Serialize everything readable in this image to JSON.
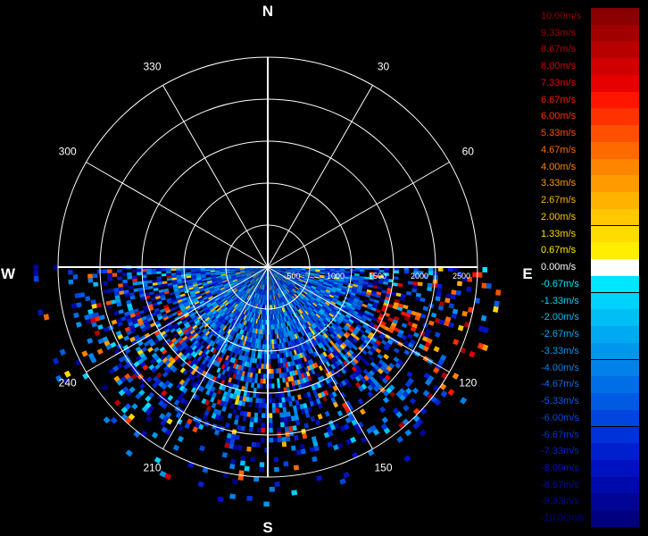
{
  "chart_data": {
    "type": "polar-radar",
    "compass": {
      "north": "N",
      "east": "E",
      "south": "S",
      "west": "W"
    },
    "angle_ticks": [
      {
        "angle": 30,
        "label": "30"
      },
      {
        "angle": 60,
        "label": "60"
      },
      {
        "angle": 120,
        "label": "120"
      },
      {
        "angle": 150,
        "label": "150"
      },
      {
        "angle": 210,
        "label": "210"
      },
      {
        "angle": 240,
        "label": "240"
      },
      {
        "angle": 300,
        "label": "300"
      },
      {
        "angle": 330,
        "label": "330"
      }
    ],
    "range_ticks": [
      "500",
      "1000",
      "1500",
      "2000",
      "2500"
    ],
    "range_max": 2500,
    "sector": {
      "start_deg": 90,
      "end_deg": 270
    },
    "colorbar": [
      {
        "label": "10.00m/s",
        "value": 10.0,
        "color": "#8b0000"
      },
      {
        "label": "9.33m/s",
        "value": 9.33,
        "color": "#a10000"
      },
      {
        "label": "8.67m/s",
        "value": 8.67,
        "color": "#b80000"
      },
      {
        "label": "8.00m/s",
        "value": 8.0,
        "color": "#d00000"
      },
      {
        "label": "7.33m/s",
        "value": 7.33,
        "color": "#e60000"
      },
      {
        "label": "6.67m/s",
        "value": 6.67,
        "color": "#ff1500"
      },
      {
        "label": "6.00m/s",
        "value": 6.0,
        "color": "#ff3200"
      },
      {
        "label": "5.33m/s",
        "value": 5.33,
        "color": "#ff4f00"
      },
      {
        "label": "4.67m/s",
        "value": 4.67,
        "color": "#ff6a00"
      },
      {
        "label": "4.00m/s",
        "value": 4.0,
        "color": "#ff8400"
      },
      {
        "label": "3.33m/s",
        "value": 3.33,
        "color": "#ff9b00"
      },
      {
        "label": "2.67m/s",
        "value": 2.67,
        "color": "#ffb200"
      },
      {
        "label": "2.00m/s",
        "value": 2.0,
        "color": "#ffc800"
      },
      {
        "label": "1.33m/s",
        "value": 1.33,
        "color": "#ffdc00"
      },
      {
        "label": "0.67m/s",
        "value": 0.67,
        "color": "#ffee00"
      },
      {
        "label": "0.00m/s",
        "value": 0.0,
        "color": "#ffffff"
      },
      {
        "label": "-0.67m/s",
        "value": -0.67,
        "color": "#00e6ff"
      },
      {
        "label": "-1.33m/s",
        "value": -1.33,
        "color": "#00d2fb"
      },
      {
        "label": "-2.00m/s",
        "value": -2.0,
        "color": "#00bef6"
      },
      {
        "label": "-2.67m/s",
        "value": -2.67,
        "color": "#00aaf2"
      },
      {
        "label": "-3.33m/s",
        "value": -3.33,
        "color": "#0096ee"
      },
      {
        "label": "-4.00m/s",
        "value": -4.0,
        "color": "#0082ea"
      },
      {
        "label": "-4.67m/s",
        "value": -4.67,
        "color": "#006ee6"
      },
      {
        "label": "-5.33m/s",
        "value": -5.33,
        "color": "#005ae2"
      },
      {
        "label": "-6.00m/s",
        "value": -6.0,
        "color": "#0046de"
      },
      {
        "label": "-6.67m/s",
        "value": -6.67,
        "color": "#0032da"
      },
      {
        "label": "-7.33m/s",
        "value": -7.33,
        "color": "#0020d0"
      },
      {
        "label": "-8.00m/s",
        "value": -8.0,
        "color": "#0012c0"
      },
      {
        "label": "-8.67m/s",
        "value": -8.67,
        "color": "#000aaa"
      },
      {
        "label": "-9.33m/s",
        "value": -9.33,
        "color": "#000596"
      },
      {
        "label": "-10.00m/s",
        "value": -10.0,
        "color": "#000080"
      }
    ]
  }
}
